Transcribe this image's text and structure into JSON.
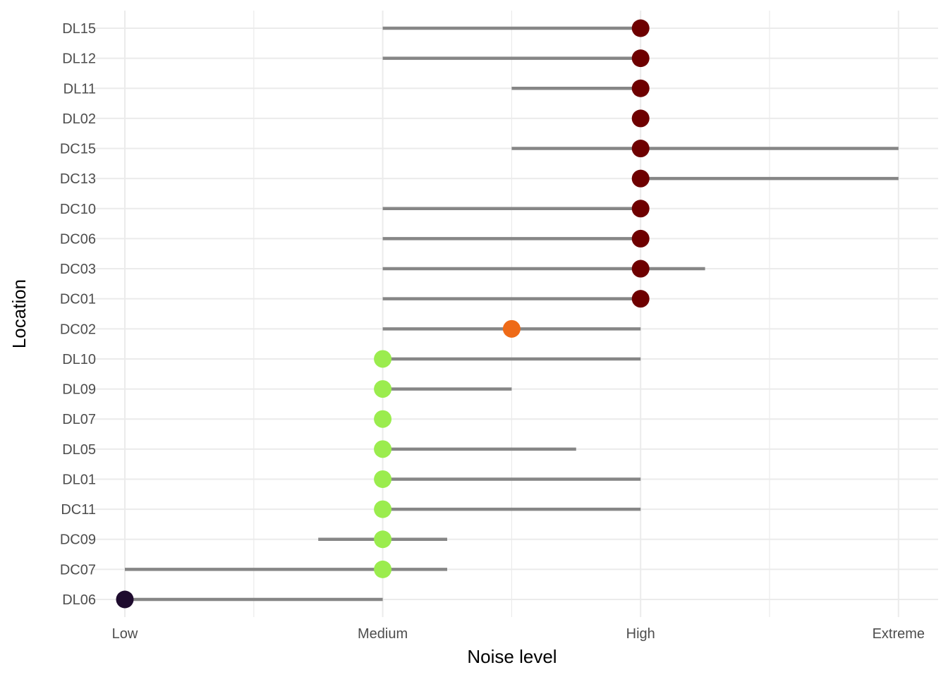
{
  "chart_data": {
    "type": "dumbbell",
    "xlabel": "Noise level",
    "ylabel": "Location",
    "x_levels": [
      "Low",
      "Medium",
      "High",
      "Extreme"
    ],
    "x_level_values": [
      1,
      2,
      3,
      4
    ],
    "xlim": [
      0.87,
      4.15
    ],
    "grid": true,
    "legend": "none",
    "point_colors": {
      "1": "#1E0B2E",
      "2": "#9BEC4E",
      "2.5": "#EE6A17",
      "3": "#6E0000"
    },
    "range_color": "#868686",
    "rows": [
      {
        "location": "DL15",
        "min": 2,
        "max": 3,
        "value": 3
      },
      {
        "location": "DL12",
        "min": 2,
        "max": 3,
        "value": 3
      },
      {
        "location": "DL11",
        "min": 2.5,
        "max": 3,
        "value": 3
      },
      {
        "location": "DL02",
        "min": 3,
        "max": 3,
        "value": 3
      },
      {
        "location": "DC15",
        "min": 2.5,
        "max": 4,
        "value": 3
      },
      {
        "location": "DC13",
        "min": 3,
        "max": 4,
        "value": 3
      },
      {
        "location": "DC10",
        "min": 2,
        "max": 3,
        "value": 3
      },
      {
        "location": "DC06",
        "min": 2,
        "max": 3,
        "value": 3
      },
      {
        "location": "DC03",
        "min": 2,
        "max": 3.25,
        "value": 3
      },
      {
        "location": "DC01",
        "min": 2,
        "max": 3,
        "value": 3
      },
      {
        "location": "DC02",
        "min": 2,
        "max": 3,
        "value": 2.5
      },
      {
        "location": "DL10",
        "min": 2,
        "max": 3,
        "value": 2
      },
      {
        "location": "DL09",
        "min": 2,
        "max": 2.5,
        "value": 2
      },
      {
        "location": "DL07",
        "min": 2,
        "max": 2,
        "value": 2
      },
      {
        "location": "DL05",
        "min": 2,
        "max": 2.75,
        "value": 2
      },
      {
        "location": "DL01",
        "min": 2,
        "max": 3,
        "value": 2
      },
      {
        "location": "DC11",
        "min": 2,
        "max": 3,
        "value": 2
      },
      {
        "location": "DC09",
        "min": 1.75,
        "max": 2.25,
        "value": 2
      },
      {
        "location": "DC07",
        "min": 1,
        "max": 2.25,
        "value": 2
      },
      {
        "location": "DL06",
        "min": 1,
        "max": 2,
        "value": 1
      }
    ]
  }
}
